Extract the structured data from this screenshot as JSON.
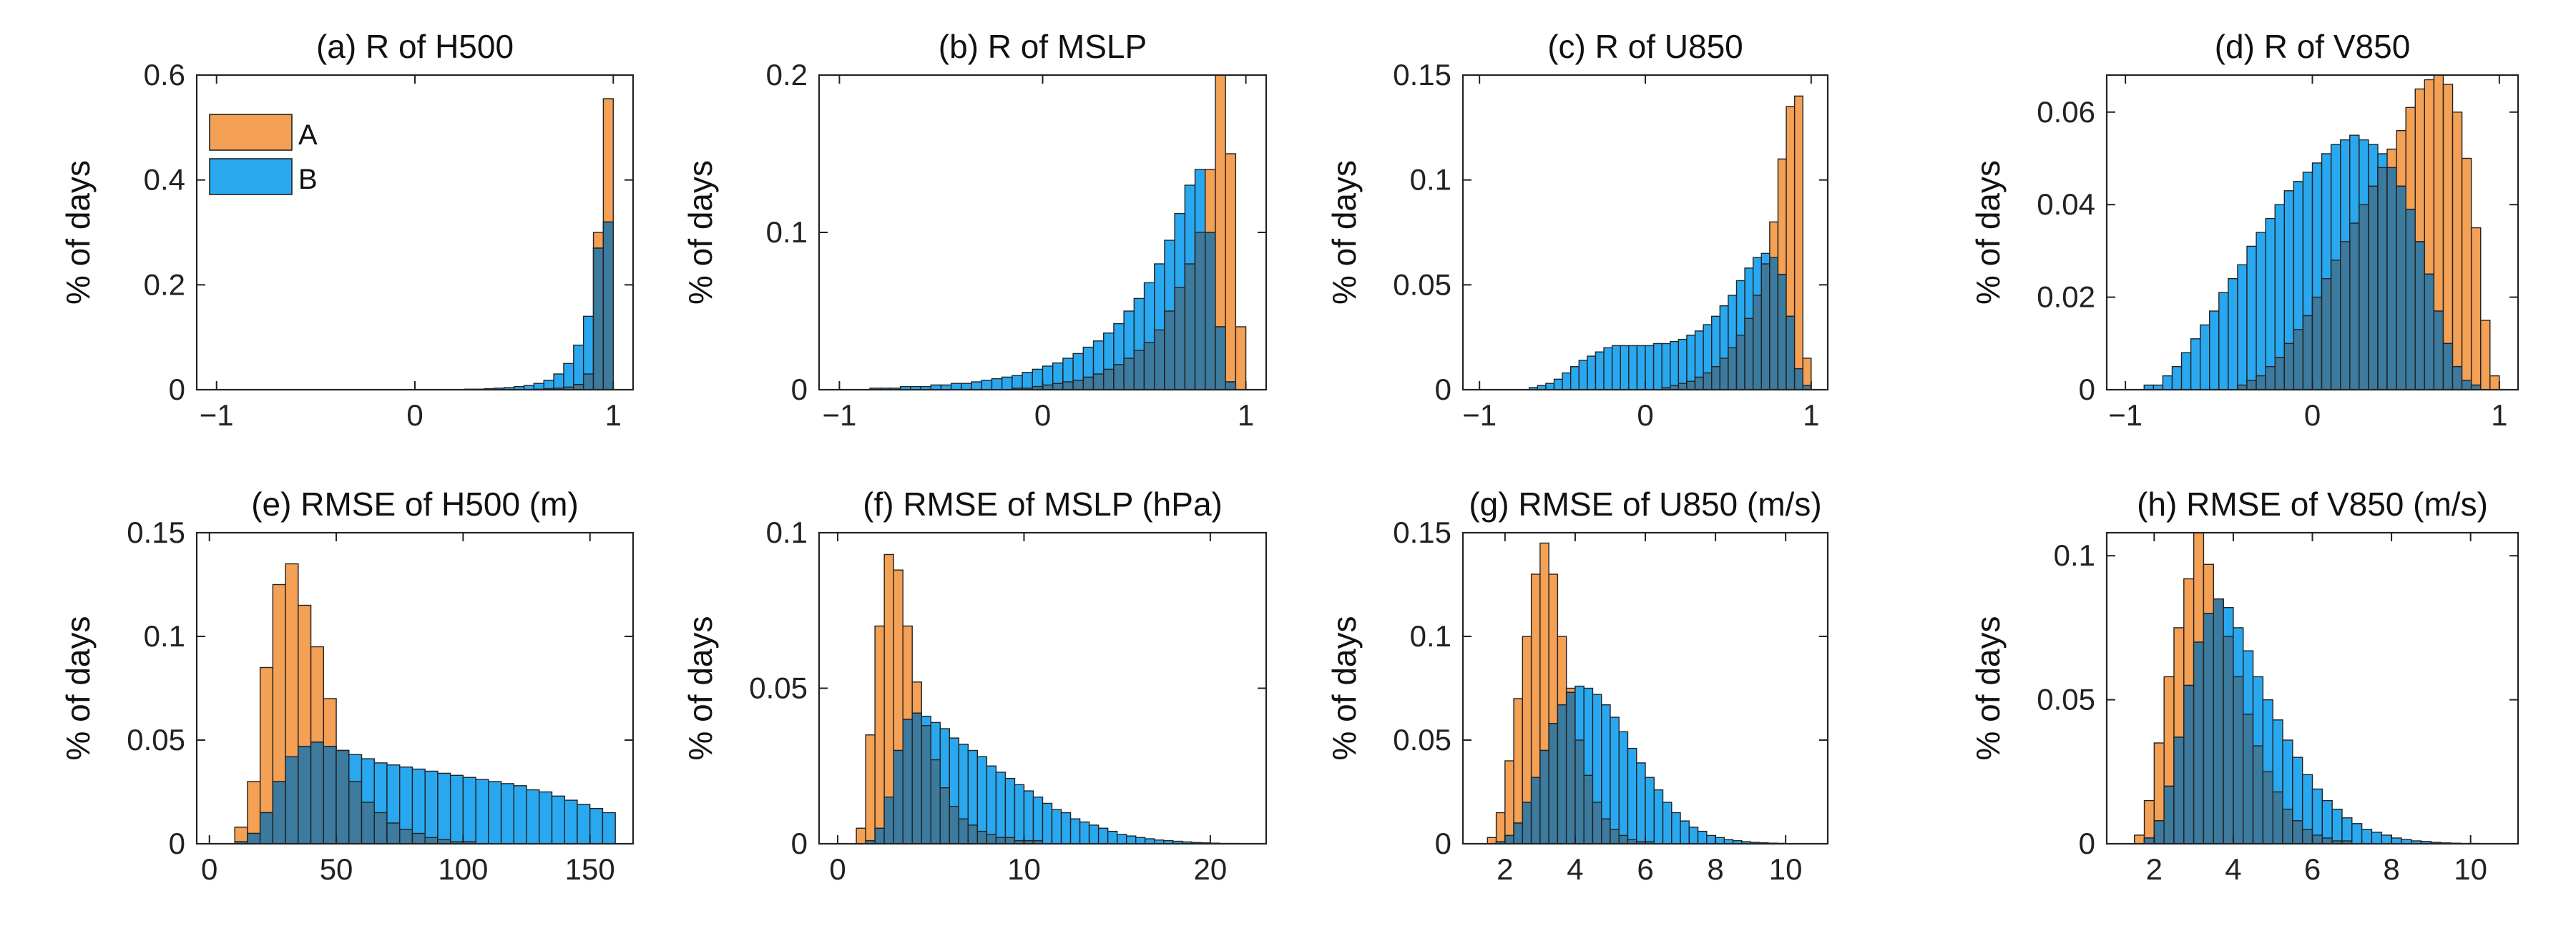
{
  "figure": {
    "series_colors": {
      "A": "#F4A055",
      "B": "#29A8F0",
      "overlap": "#3C7A9E",
      "edge": "#222222"
    }
  },
  "chart_data": [
    {
      "type": "bar",
      "id": "a",
      "title": "(a) R of H500",
      "ylabel": "% of days",
      "xlim": [
        -1.1,
        1.1
      ],
      "ylim": [
        0,
        0.6
      ],
      "xticks": [
        -1,
        0,
        1
      ],
      "xtick_labels": [
        "−1",
        "0",
        "1"
      ],
      "yticks": [
        0,
        0.2,
        0.4,
        0.6
      ],
      "ytick_labels": [
        "0",
        "0.2",
        "0.4",
        "0.6"
      ],
      "bin_start": -1.0,
      "bin_width": 0.05,
      "legend": {
        "entries": [
          "A",
          "B"
        ],
        "location": "top-left"
      },
      "series": [
        {
          "name": "A",
          "values": [
            0,
            0,
            0,
            0,
            0,
            0,
            0,
            0,
            0,
            0,
            0,
            0,
            0,
            0,
            0,
            0,
            0,
            0,
            0,
            0,
            0,
            0,
            0,
            0,
            0,
            0,
            0,
            0,
            0,
            0,
            0,
            0,
            0.001,
            0.002,
            0.003,
            0.005,
            0.01,
            0.03,
            0.3,
            0.555
          ]
        },
        {
          "name": "B",
          "values": [
            0,
            0,
            0,
            0,
            0,
            0,
            0,
            0,
            0,
            0,
            0,
            0,
            0,
            0,
            0,
            0,
            0,
            0,
            0,
            0,
            0,
            0,
            0,
            0,
            0,
            0.001,
            0.001,
            0.002,
            0.003,
            0.004,
            0.006,
            0.008,
            0.012,
            0.018,
            0.03,
            0.05,
            0.085,
            0.14,
            0.27,
            0.32
          ]
        }
      ]
    },
    {
      "type": "bar",
      "id": "b",
      "title": "(b) R of MSLP",
      "ylabel": "% of days",
      "xlim": [
        -1.1,
        1.1
      ],
      "ylim": [
        0,
        0.2
      ],
      "xticks": [
        -1,
        0,
        1
      ],
      "xtick_labels": [
        "−1",
        "0",
        "1"
      ],
      "yticks": [
        0,
        0.1,
        0.2
      ],
      "ytick_labels": [
        "0",
        "0.1",
        "0.2"
      ],
      "bin_start": -1.0,
      "bin_width": 0.05,
      "series": [
        {
          "name": "A",
          "values": [
            0,
            0,
            0,
            0,
            0,
            0,
            0,
            0,
            0,
            0,
            0,
            0,
            0,
            0,
            0,
            0,
            0,
            0.001,
            0.001,
            0.002,
            0.003,
            0.004,
            0.005,
            0.006,
            0.008,
            0.01,
            0.013,
            0.016,
            0.02,
            0.025,
            0.03,
            0.038,
            0.05,
            0.065,
            0.08,
            0.1,
            0.14,
            0.2,
            0.15,
            0.04
          ]
        },
        {
          "name": "B",
          "values": [
            0,
            0,
            0,
            0.001,
            0.001,
            0.001,
            0.002,
            0.002,
            0.002,
            0.003,
            0.003,
            0.004,
            0.004,
            0.005,
            0.006,
            0.007,
            0.008,
            0.009,
            0.011,
            0.013,
            0.015,
            0.017,
            0.02,
            0.023,
            0.027,
            0.031,
            0.036,
            0.042,
            0.05,
            0.058,
            0.068,
            0.08,
            0.095,
            0.112,
            0.13,
            0.14,
            0.1,
            0.04,
            0.005,
            0
          ]
        }
      ]
    },
    {
      "type": "bar",
      "id": "c",
      "title": "(c) R of U850",
      "ylabel": "% of days",
      "xlim": [
        -1.1,
        1.1
      ],
      "ylim": [
        0,
        0.15
      ],
      "xticks": [
        -1,
        0,
        1
      ],
      "xtick_labels": [
        "−1",
        "0",
        "1"
      ],
      "yticks": [
        0,
        0.05,
        0.1,
        0.15
      ],
      "ytick_labels": [
        "0",
        "0.05",
        "0.1",
        "0.15"
      ],
      "bin_start": -1.0,
      "bin_width": 0.05,
      "series": [
        {
          "name": "A",
          "values": [
            0,
            0,
            0,
            0,
            0,
            0,
            0,
            0,
            0,
            0,
            0,
            0,
            0,
            0,
            0,
            0,
            0,
            0,
            0,
            0,
            0,
            0,
            0.001,
            0.002,
            0.003,
            0.004,
            0.006,
            0.008,
            0.011,
            0.015,
            0.02,
            0.026,
            0.034,
            0.045,
            0.06,
            0.08,
            0.11,
            0.135,
            0.14,
            0.015
          ]
        },
        {
          "name": "B",
          "values": [
            0,
            0,
            0,
            0,
            0,
            0,
            0.001,
            0.002,
            0.003,
            0.005,
            0.008,
            0.011,
            0.014,
            0.016,
            0.018,
            0.02,
            0.021,
            0.021,
            0.021,
            0.021,
            0.021,
            0.022,
            0.022,
            0.023,
            0.024,
            0.026,
            0.028,
            0.031,
            0.035,
            0.04,
            0.045,
            0.052,
            0.058,
            0.063,
            0.065,
            0.063,
            0.055,
            0.035,
            0.01,
            0.002
          ]
        }
      ]
    },
    {
      "type": "bar",
      "id": "d",
      "title": "(d) R of V850",
      "ylabel": "% of days",
      "xlim": [
        -1.1,
        1.1
      ],
      "ylim": [
        0,
        0.068
      ],
      "xticks": [
        -1,
        0,
        1
      ],
      "xtick_labels": [
        "−1",
        "0",
        "1"
      ],
      "yticks": [
        0,
        0.02,
        0.04,
        0.06
      ],
      "ytick_labels": [
        "0",
        "0.02",
        "0.04",
        "0.06"
      ],
      "bin_start": -1.0,
      "bin_width": 0.05,
      "series": [
        {
          "name": "A",
          "values": [
            0,
            0,
            0,
            0,
            0,
            0,
            0,
            0,
            0,
            0,
            0,
            0,
            0.001,
            0.002,
            0.003,
            0.005,
            0.007,
            0.01,
            0.013,
            0.016,
            0.02,
            0.024,
            0.028,
            0.032,
            0.036,
            0.04,
            0.044,
            0.048,
            0.052,
            0.056,
            0.061,
            0.065,
            0.067,
            0.068,
            0.066,
            0.06,
            0.05,
            0.035,
            0.015,
            0.003
          ]
        },
        {
          "name": "B",
          "values": [
            0,
            0,
            0.001,
            0.001,
            0.003,
            0.005,
            0.008,
            0.011,
            0.014,
            0.017,
            0.021,
            0.024,
            0.027,
            0.031,
            0.034,
            0.037,
            0.04,
            0.043,
            0.045,
            0.047,
            0.049,
            0.051,
            0.053,
            0.054,
            0.055,
            0.054,
            0.053,
            0.051,
            0.048,
            0.044,
            0.039,
            0.032,
            0.025,
            0.017,
            0.01,
            0.005,
            0.002,
            0.001,
            0,
            0
          ]
        }
      ]
    },
    {
      "type": "bar",
      "id": "e",
      "title": "(e) RMSE of H500 (m)",
      "ylabel": "% of days",
      "xlim": [
        -5,
        167
      ],
      "ylim": [
        0,
        0.15
      ],
      "xticks": [
        0,
        50,
        100,
        150
      ],
      "xtick_labels": [
        "0",
        "50",
        "100",
        "150"
      ],
      "yticks": [
        0,
        0.05,
        0.1,
        0.15
      ],
      "ytick_labels": [
        "0",
        "0.05",
        "0.1",
        "0.15"
      ],
      "bin_start": 5,
      "bin_width": 5,
      "series": [
        {
          "name": "A",
          "values": [
            0,
            0.008,
            0.03,
            0.085,
            0.125,
            0.135,
            0.115,
            0.095,
            0.07,
            0.045,
            0.03,
            0.02,
            0.015,
            0.01,
            0.007,
            0.005,
            0.003,
            0.002,
            0.001,
            0.001,
            0,
            0,
            0,
            0,
            0,
            0,
            0,
            0,
            0,
            0,
            0
          ]
        },
        {
          "name": "B",
          "values": [
            0,
            0.001,
            0.005,
            0.015,
            0.03,
            0.042,
            0.047,
            0.049,
            0.047,
            0.045,
            0.043,
            0.041,
            0.039,
            0.038,
            0.037,
            0.036,
            0.035,
            0.034,
            0.033,
            0.032,
            0.031,
            0.03,
            0.029,
            0.028,
            0.026,
            0.025,
            0.023,
            0.021,
            0.019,
            0.017,
            0.015
          ]
        }
      ]
    },
    {
      "type": "bar",
      "id": "f",
      "title": "(f) RMSE of MSLP (hPa)",
      "ylabel": "% of days",
      "xlim": [
        -1,
        23
      ],
      "ylim": [
        0,
        0.1
      ],
      "xticks": [
        0,
        10,
        20
      ],
      "xtick_labels": [
        "0",
        "10",
        "20"
      ],
      "yticks": [
        0,
        0.05,
        0.1
      ],
      "ytick_labels": [
        "0",
        "0.05",
        "0.1"
      ],
      "bin_start": 0.5,
      "bin_width": 0.5,
      "series": [
        {
          "name": "A",
          "values": [
            0,
            0.005,
            0.035,
            0.07,
            0.093,
            0.088,
            0.07,
            0.052,
            0.038,
            0.027,
            0.018,
            0.012,
            0.008,
            0.006,
            0.004,
            0.003,
            0.002,
            0.002,
            0.001,
            0.001,
            0.001,
            0,
            0,
            0,
            0,
            0,
            0,
            0,
            0,
            0,
            0,
            0,
            0,
            0,
            0,
            0,
            0,
            0,
            0,
            0,
            0,
            0
          ]
        },
        {
          "name": "B",
          "values": [
            0,
            0,
            0.001,
            0.005,
            0.015,
            0.03,
            0.04,
            0.042,
            0.041,
            0.039,
            0.037,
            0.034,
            0.032,
            0.03,
            0.028,
            0.025,
            0.023,
            0.021,
            0.019,
            0.017,
            0.015,
            0.013,
            0.011,
            0.01,
            0.008,
            0.007,
            0.006,
            0.005,
            0.004,
            0.003,
            0.0025,
            0.002,
            0.0016,
            0.0012,
            0.001,
            0.0008,
            0.0006,
            0.0004,
            0.0003,
            0.0002,
            0.0001,
            0.0001
          ]
        }
      ]
    },
    {
      "type": "bar",
      "id": "g",
      "title": "(g) RMSE of U850 (m/s)",
      "ylabel": "% of days",
      "xlim": [
        0.8,
        11.2
      ],
      "ylim": [
        0,
        0.15
      ],
      "xticks": [
        2,
        4,
        6,
        8,
        10
      ],
      "xtick_labels": [
        "2",
        "4",
        "6",
        "8",
        "10"
      ],
      "yticks": [
        0,
        0.05,
        0.1,
        0.15
      ],
      "ytick_labels": [
        "0",
        "0.05",
        "0.1",
        "0.15"
      ],
      "bin_start": 1.5,
      "bin_width": 0.25,
      "series": [
        {
          "name": "A",
          "values": [
            0.003,
            0.015,
            0.04,
            0.07,
            0.1,
            0.13,
            0.145,
            0.13,
            0.1,
            0.075,
            0.05,
            0.033,
            0.02,
            0.012,
            0.007,
            0.004,
            0.002,
            0.001,
            0.001,
            0,
            0,
            0,
            0,
            0,
            0,
            0,
            0,
            0,
            0,
            0,
            0,
            0,
            0,
            0,
            0,
            0
          ]
        },
        {
          "name": "B",
          "values": [
            0,
            0.001,
            0.004,
            0.01,
            0.02,
            0.032,
            0.045,
            0.058,
            0.067,
            0.073,
            0.076,
            0.075,
            0.072,
            0.067,
            0.061,
            0.054,
            0.046,
            0.039,
            0.032,
            0.026,
            0.02,
            0.015,
            0.011,
            0.008,
            0.006,
            0.004,
            0.003,
            0.002,
            0.0015,
            0.001,
            0.0007,
            0.0005,
            0.0003,
            0.0002,
            0.0001,
            0
          ]
        }
      ]
    },
    {
      "type": "bar",
      "id": "h",
      "title": "(h) RMSE of V850 (m/s)",
      "ylabel": "% of days",
      "xlim": [
        0.8,
        11.2
      ],
      "ylim": [
        0,
        0.108
      ],
      "xticks": [
        2,
        4,
        6,
        8,
        10
      ],
      "xtick_labels": [
        "2",
        "4",
        "6",
        "8",
        "10"
      ],
      "yticks": [
        0,
        0.05,
        0.1
      ],
      "ytick_labels": [
        "0",
        "0.05",
        "0.1"
      ],
      "bin_start": 1.5,
      "bin_width": 0.25,
      "series": [
        {
          "name": "A",
          "values": [
            0.003,
            0.015,
            0.035,
            0.058,
            0.075,
            0.092,
            0.108,
            0.097,
            0.085,
            0.072,
            0.058,
            0.045,
            0.034,
            0.025,
            0.018,
            0.012,
            0.008,
            0.005,
            0.003,
            0.002,
            0.001,
            0.001,
            0,
            0,
            0,
            0,
            0,
            0,
            0,
            0,
            0,
            0,
            0,
            0,
            0,
            0
          ]
        },
        {
          "name": "B",
          "values": [
            0,
            0.002,
            0.008,
            0.02,
            0.037,
            0.055,
            0.07,
            0.08,
            0.085,
            0.082,
            0.075,
            0.067,
            0.058,
            0.05,
            0.043,
            0.036,
            0.03,
            0.024,
            0.019,
            0.015,
            0.012,
            0.009,
            0.007,
            0.005,
            0.004,
            0.003,
            0.002,
            0.0015,
            0.001,
            0.0008,
            0.0005,
            0.0003,
            0.0002,
            0.0001,
            0.0001,
            0
          ]
        }
      ]
    }
  ]
}
